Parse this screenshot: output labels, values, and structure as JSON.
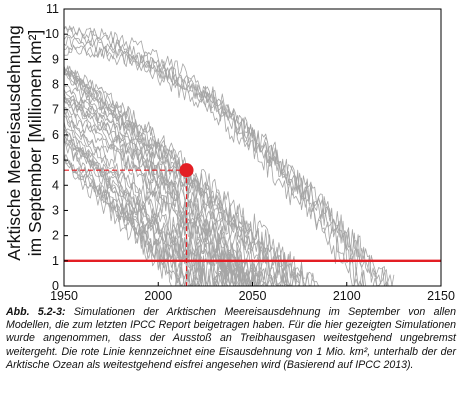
{
  "caption": {
    "label": "Abb. 5.2-3:",
    "text": "Simulationen der Arktischen Meereisausdehnung im September von allen Modellen, die zum letzten IPCC Report beigetragen haben. Für die hier gezeigten Simulationen wurde angenommen, dass der Ausstoß an Treibhausgasen weitestgehend ungebremst weitergeht. Die rote Linie kennzeichnet eine Eisausdehnung von 1 Mio. km², unterhalb der der Arktische Ozean als weitestgehend eisfrei angesehen wird (Basierend auf IPCC 2013)."
  },
  "colors": {
    "simulations": "#a6a6a6",
    "threshold": "#e31e24",
    "highlight": "#e31e24",
    "axes": "#000000"
  },
  "chart_data": {
    "type": "line",
    "ylabel_line1": "Arktische Meereisausdehnung",
    "ylabel_line2": "im September [Millionen km²]",
    "xlim": [
      1950,
      2150
    ],
    "ylim": [
      0,
      11
    ],
    "x_ticks": [
      1950,
      2000,
      2050,
      2100,
      2150
    ],
    "y_ticks": [
      0,
      1,
      2,
      3,
      4,
      5,
      6,
      7,
      8,
      9,
      10,
      11
    ],
    "grid": false,
    "simulation_groups": [
      {
        "name": "",
        "start_range": [
          9.3,
          10.4
        ],
        "end_year_range": [
          2105,
          2130
        ],
        "count": 6,
        "shape": 1.9
      },
      {
        "name": "",
        "start_range": [
          6.8,
          8.8
        ],
        "end_year_range": [
          2040,
          2085
        ],
        "count": 18,
        "shape": 1.2
      },
      {
        "name": "",
        "start_range": [
          5.0,
          7.2
        ],
        "end_year_range": [
          2010,
          2050
        ],
        "count": 16,
        "shape": 0.9
      }
    ],
    "threshold": {
      "y": 1,
      "label": "1 Mio. km²"
    },
    "highlight_point": {
      "x": 2015,
      "y": 4.6
    },
    "highlight_guides": {
      "x": 2015,
      "y": 4.6
    }
  }
}
